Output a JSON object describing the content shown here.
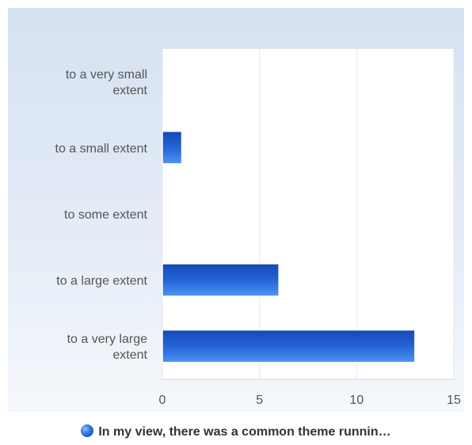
{
  "chart_data": {
    "type": "bar",
    "orientation": "horizontal",
    "categories": [
      "to a very small extent",
      "to a small extent",
      "to some extent",
      "to a large extent",
      "to a very large extent"
    ],
    "series": [
      {
        "name": "In my view, there was a common theme runnin…",
        "values": [
          0,
          1,
          0,
          6,
          13
        ]
      }
    ],
    "xticks": [
      "0",
      "5",
      "10",
      "15"
    ],
    "xlim": [
      0,
      15
    ],
    "grid": true,
    "legend_position": "bottom",
    "colors": {
      "bar_light": "#3d86ec",
      "bar_dark": "#1448b8",
      "bar_mid": "#2563d6"
    }
  }
}
